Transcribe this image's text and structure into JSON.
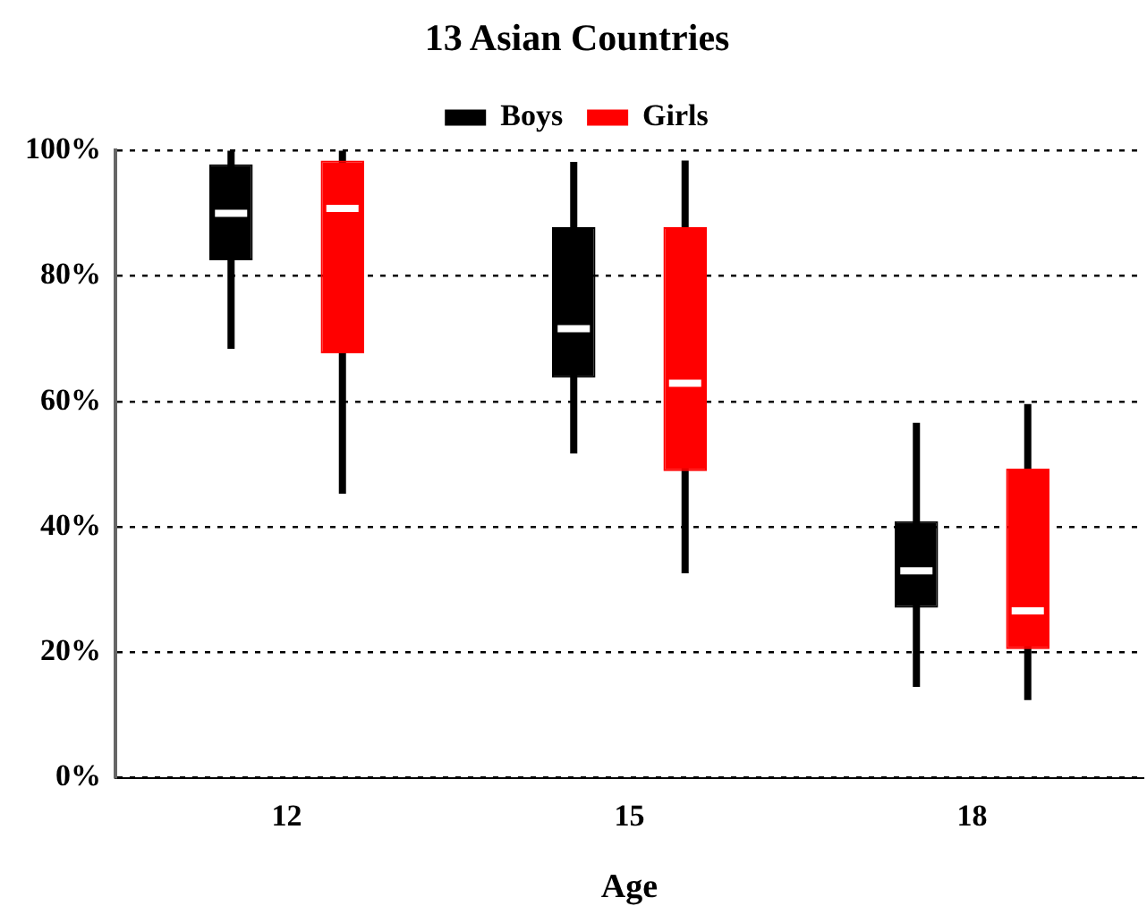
{
  "chart_data": {
    "type": "box",
    "title": "13 Asian Countries",
    "xlabel": "Age",
    "categories": [
      "12",
      "15",
      "18"
    ],
    "series": [
      {
        "name": "Boys",
        "color": "#000000",
        "boxes": [
          {
            "low": 68.4,
            "q1": 82.5,
            "median": 90,
            "q3": 97.8,
            "high": 100
          },
          {
            "low": 51.7,
            "q1": 63.8,
            "median": 71.6,
            "q3": 87.8,
            "high": 98.2
          },
          {
            "low": 14.5,
            "q1": 27.1,
            "median": 33,
            "q3": 40.9,
            "high": 56.6
          }
        ]
      },
      {
        "name": "Girls",
        "color": "#ff0000",
        "boxes": [
          {
            "low": 45.3,
            "q1": 67.7,
            "median": 90.8,
            "q3": 98.4,
            "high": 100
          },
          {
            "low": 32.6,
            "q1": 48.9,
            "median": 62.9,
            "q3": 87.8,
            "high": 98.4
          },
          {
            "low": 12.4,
            "q1": 20.5,
            "median": 26.6,
            "q3": 49.3,
            "high": 59.6
          }
        ]
      }
    ],
    "ylim": [
      0,
      100
    ],
    "yticks": [
      {
        "value": 0,
        "label": "0%"
      },
      {
        "value": 20,
        "label": "20%"
      },
      {
        "value": 40,
        "label": "40%"
      },
      {
        "value": 60,
        "label": "60%"
      },
      {
        "value": 80,
        "label": "80%"
      },
      {
        "value": 100,
        "label": "100%"
      }
    ],
    "grid": "y",
    "legend": "top"
  }
}
